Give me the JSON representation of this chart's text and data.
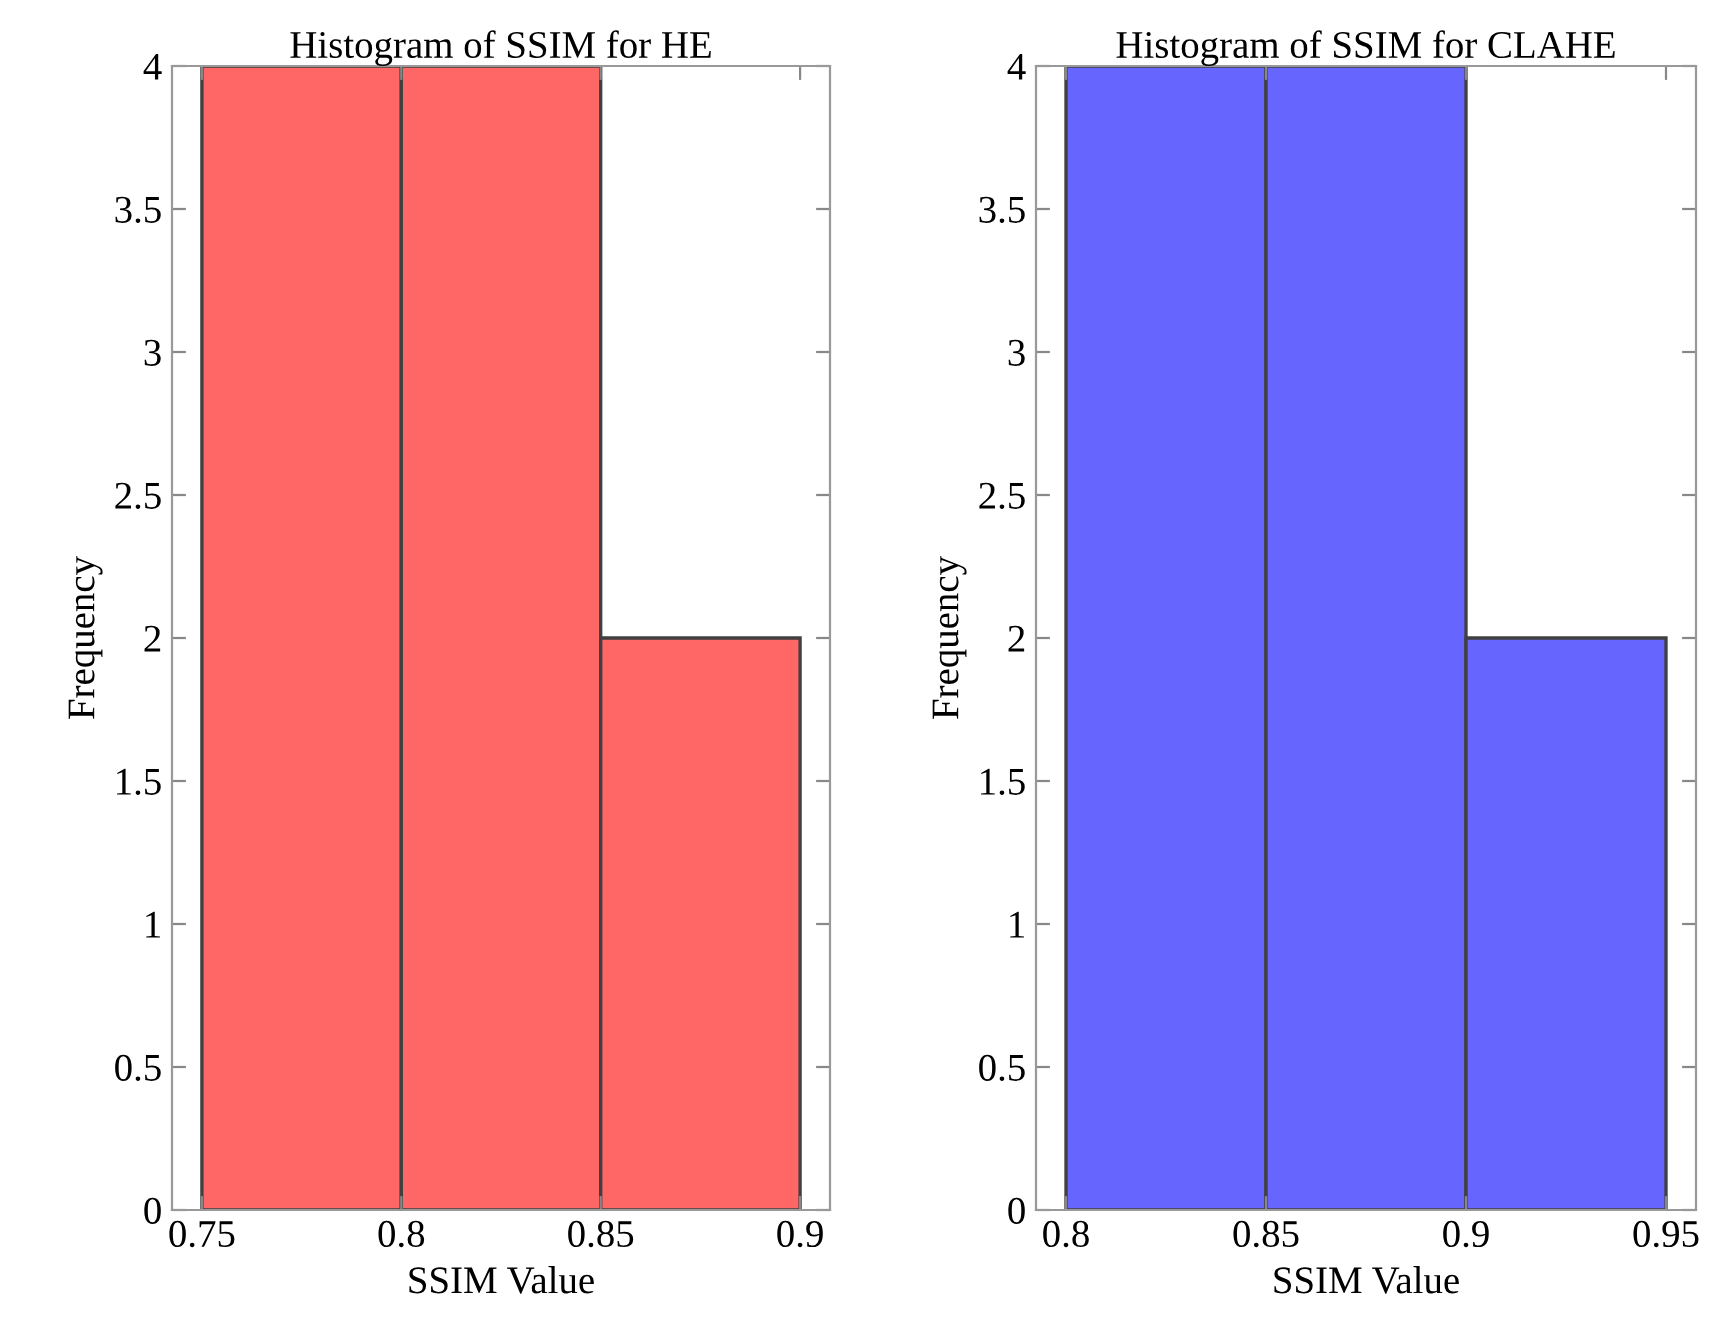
{
  "chart_data": [
    {
      "type": "histogram",
      "title": "Histogram of SSIM for HE",
      "xlabel": "SSIM Value",
      "ylabel": "Frequency",
      "bins": [
        0.75,
        0.8,
        0.85,
        0.9
      ],
      "values": [
        4,
        4,
        2
      ],
      "color": "#ff6666",
      "xlim": [
        0.7425,
        0.9075
      ],
      "xticks": [
        0.75,
        0.8,
        0.85,
        0.9
      ],
      "ylim": [
        0,
        4
      ],
      "yticks": [
        0,
        0.5,
        1,
        1.5,
        2,
        2.5,
        3,
        3.5,
        4
      ],
      "grid": false,
      "legend": false
    },
    {
      "type": "histogram",
      "title": "Histogram of SSIM for CLAHE",
      "xlabel": "SSIM Value",
      "ylabel": "Frequency",
      "bins": [
        0.8,
        0.85,
        0.9,
        0.95
      ],
      "values": [
        4,
        4,
        2
      ],
      "color": "#6666ff",
      "xlim": [
        0.7925,
        0.9575
      ],
      "xticks": [
        0.8,
        0.85,
        0.9,
        0.95
      ],
      "ylim": [
        0,
        4
      ],
      "yticks": [
        0,
        0.5,
        1,
        1.5,
        2,
        2.5,
        3,
        3.5,
        4
      ],
      "grid": false,
      "legend": false
    }
  ]
}
